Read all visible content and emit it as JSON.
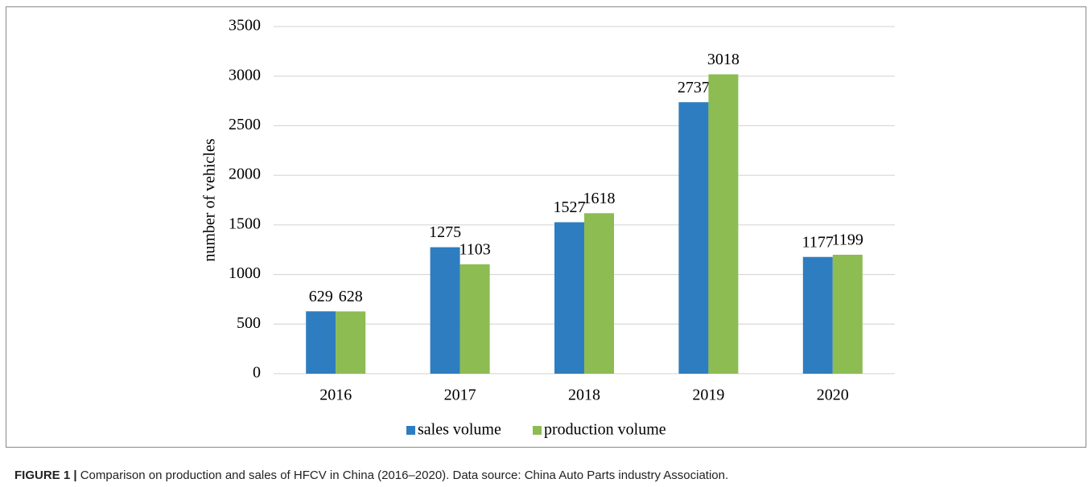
{
  "chart_data": {
    "type": "bar",
    "y_label": "number of vehicles",
    "categories": [
      "2016",
      "2017",
      "2018",
      "2019",
      "2020"
    ],
    "series": [
      {
        "name": "sales volume",
        "color": "#2e7dc0",
        "values": [
          629,
          1275,
          1527,
          2737,
          1177
        ]
      },
      {
        "name": "production volume",
        "color": "#8cbc52",
        "values": [
          628,
          1103,
          1618,
          3018,
          1199
        ]
      }
    ],
    "ylim": [
      0,
      3500
    ],
    "yticks": [
      0,
      500,
      1000,
      1500,
      2000,
      2500,
      3000,
      3500
    ],
    "grid": true,
    "legend": "bottom"
  },
  "caption": {
    "label": "FIGURE 1 |",
    "text": "Comparison on production and sales of HFCV in China (2016–2020). Data source: China Auto Parts industry Association."
  }
}
